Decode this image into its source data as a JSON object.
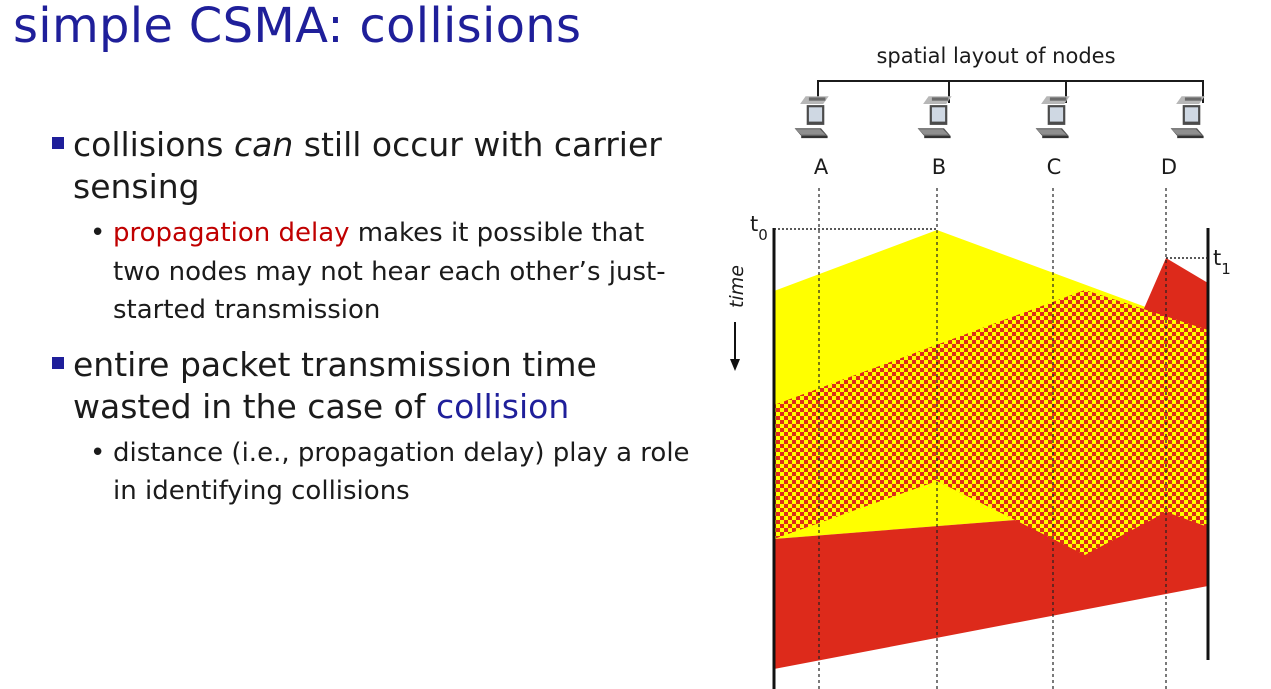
{
  "slide": {
    "title": "simple CSMA: collisions",
    "bullets": [
      {
        "pre": "collisions ",
        "em": "can",
        "post": " still occur with carrier sensing",
        "sub": [
          {
            "highlight": "propagation delay",
            "rest": " makes it possible that two nodes may not hear each other’s just-started transmission"
          }
        ]
      },
      {
        "pre": "entire packet transmission time wasted in the case of ",
        "highlight": "collision",
        "sub": [
          {
            "text": "distance (i.e., propagation delay) play a role in identifying collisions"
          }
        ]
      }
    ],
    "colors": {
      "title": "#1f1f9a",
      "red_text": "#c00000",
      "yellow": "#ffff00",
      "red_fill": "#dd2a1b"
    }
  },
  "diagram": {
    "spatial_label": "spatial layout of nodes",
    "nodes": [
      "A",
      "B",
      "C",
      "D"
    ],
    "time_label": "time",
    "t0_label": "t",
    "t0_sub": "0",
    "t1_label": "t",
    "t1_sub": "1"
  }
}
